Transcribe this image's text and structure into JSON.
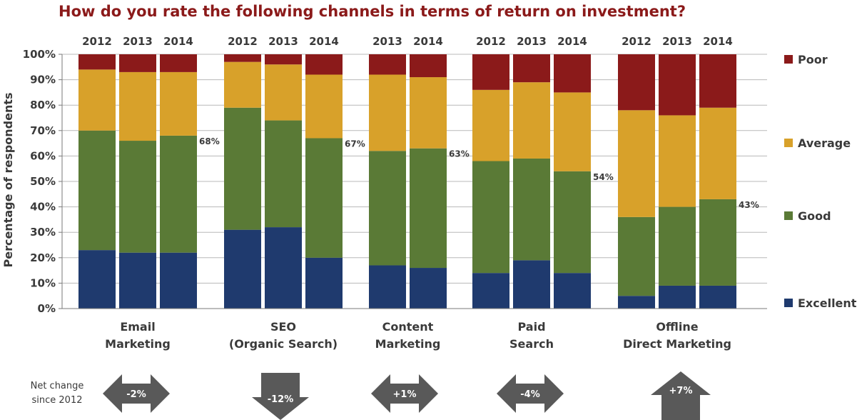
{
  "chart_data": {
    "type": "bar",
    "stacked": true,
    "title": "How do you rate the following channels in terms of return on investment?",
    "ylabel": "Percentage of respondents",
    "ylim": [
      0,
      100
    ],
    "yticks": [
      "0%",
      "10%",
      "20%",
      "30%",
      "40%",
      "50%",
      "60%",
      "70%",
      "80%",
      "90%",
      "100%"
    ],
    "grid": true,
    "legend_position": "right",
    "series": [
      {
        "name": "Excellent",
        "color": "#1f3a6e"
      },
      {
        "name": "Good",
        "color": "#5a7a36"
      },
      {
        "name": "Average",
        "color": "#d8a12a"
      },
      {
        "name": "Poor",
        "color": "#8b1a1a"
      }
    ],
    "legend_order": [
      "Poor",
      "Average",
      "Good",
      "Excellent"
    ],
    "groups": [
      {
        "category_lines": [
          "Email",
          "Marketing"
        ],
        "good_or_better_label": "68%",
        "bars": [
          {
            "year": "2012",
            "values": [
              23,
              47,
              24,
              6
            ]
          },
          {
            "year": "2013",
            "values": [
              22,
              44,
              27,
              7
            ]
          },
          {
            "year": "2014",
            "values": [
              22,
              46,
              25,
              7
            ]
          }
        ]
      },
      {
        "category_lines": [
          "SEO",
          "(Organic Search)"
        ],
        "good_or_better_label": "67%",
        "bars": [
          {
            "year": "2012",
            "values": [
              31,
              48,
              18,
              3
            ]
          },
          {
            "year": "2013",
            "values": [
              32,
              42,
              22,
              4
            ]
          },
          {
            "year": "2014",
            "values": [
              20,
              47,
              25,
              8
            ]
          }
        ]
      },
      {
        "category_lines": [
          "Content",
          "Marketing"
        ],
        "good_or_better_label": "63%",
        "bars": [
          {
            "year": "2013",
            "values": [
              17,
              45,
              30,
              8
            ]
          },
          {
            "year": "2014",
            "values": [
              16,
              47,
              28,
              9
            ]
          }
        ]
      },
      {
        "category_lines": [
          "Paid",
          "Search"
        ],
        "good_or_better_label": "54%",
        "bars": [
          {
            "year": "2012",
            "values": [
              14,
              44,
              28,
              14
            ]
          },
          {
            "year": "2013",
            "values": [
              19,
              40,
              30,
              11
            ]
          },
          {
            "year": "2014",
            "values": [
              14,
              40,
              31,
              15
            ]
          }
        ]
      },
      {
        "category_lines": [
          "Offline",
          "Direct Marketing"
        ],
        "good_or_better_label": "43%",
        "bars": [
          {
            "year": "2012",
            "values": [
              5,
              31,
              42,
              22
            ]
          },
          {
            "year": "2013",
            "values": [
              9,
              31,
              36,
              24
            ]
          },
          {
            "year": "2014",
            "values": [
              9,
              34,
              36,
              21
            ]
          }
        ]
      }
    ],
    "net_change": {
      "label_lines": [
        "Net change",
        "since 2012"
      ],
      "arrow_color": "#595959",
      "items": [
        {
          "value": "-2%",
          "direction": "left-right"
        },
        {
          "value": "-12%",
          "direction": "down"
        },
        {
          "value": "+1%",
          "direction": "left-right"
        },
        {
          "value": "-4%",
          "direction": "left-right"
        },
        {
          "value": "+7%",
          "direction": "up"
        }
      ]
    }
  }
}
